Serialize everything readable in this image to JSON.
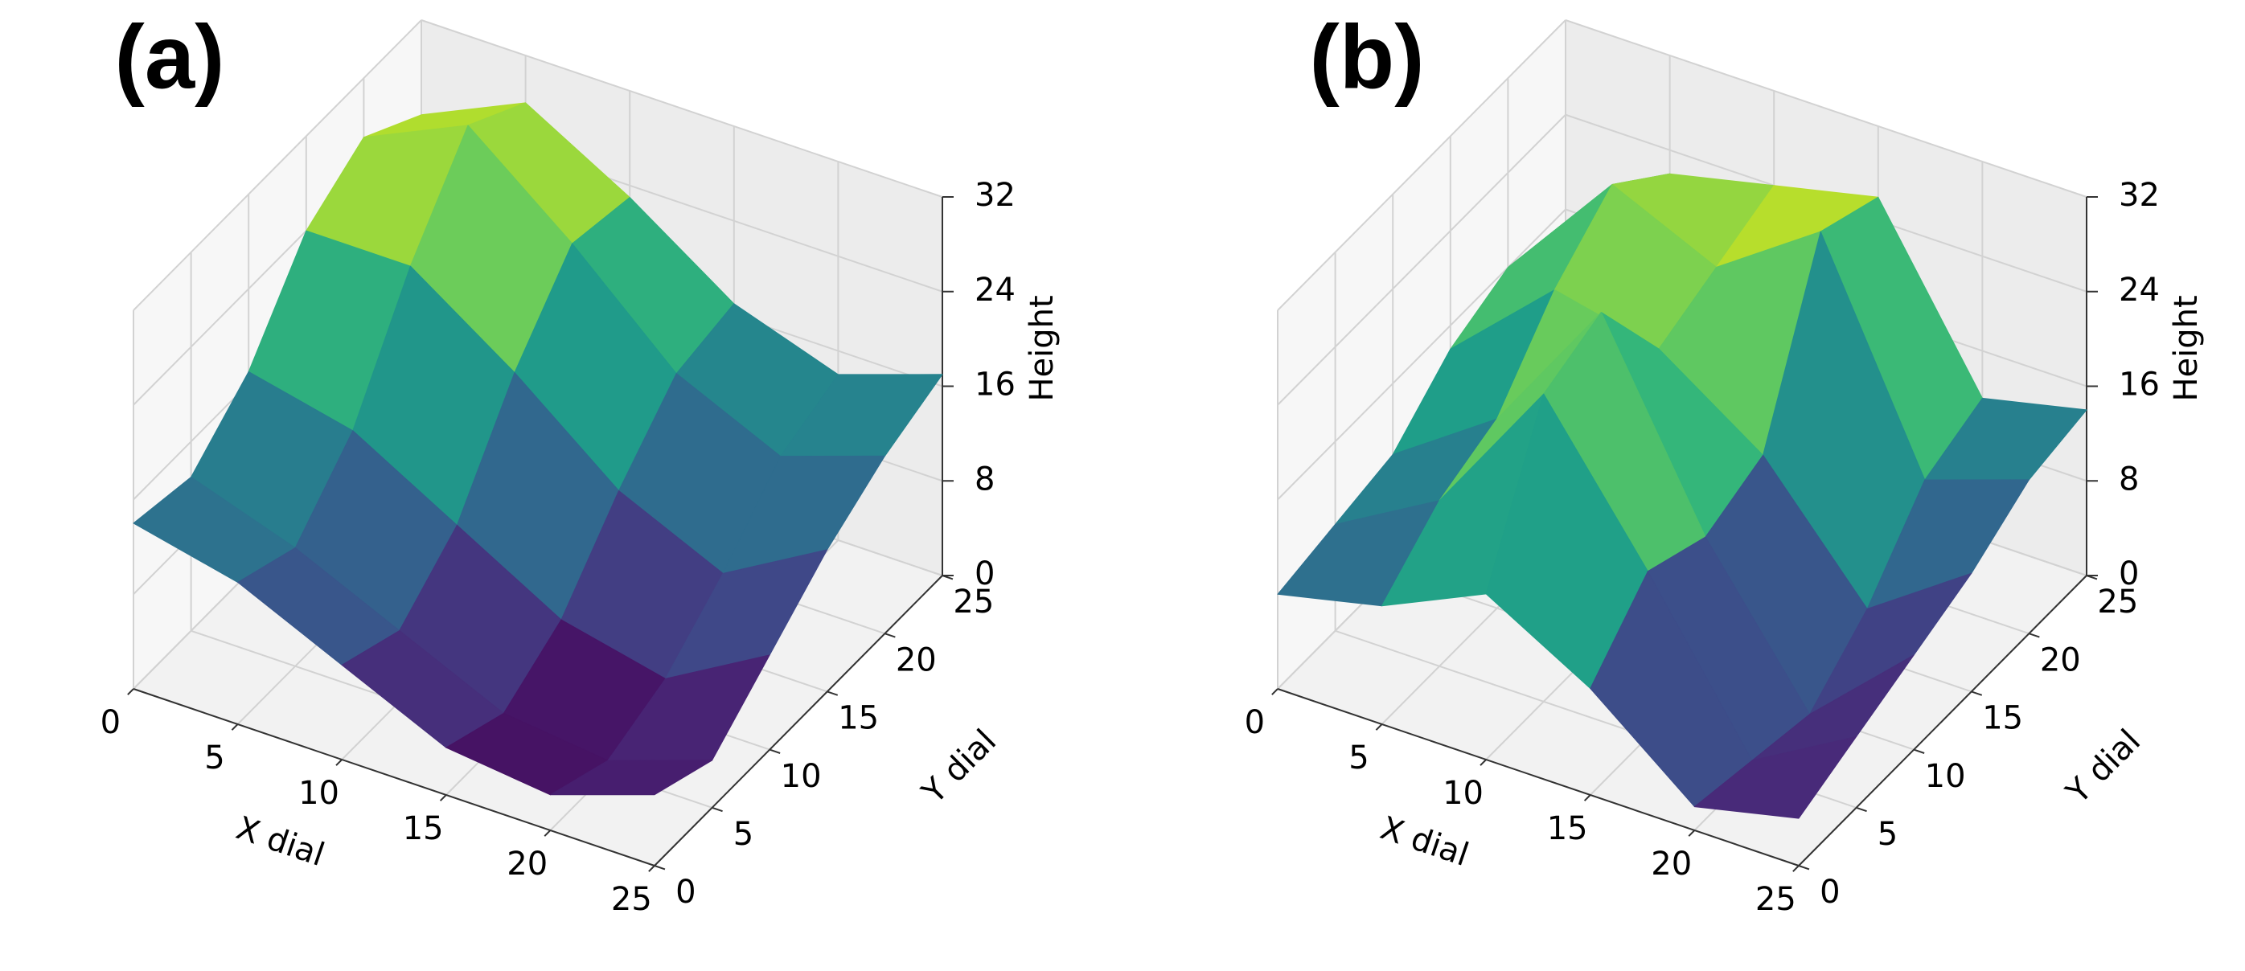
{
  "chart_data": [
    {
      "type": "surface",
      "panel_label": "(a)",
      "xlabel": "X dial",
      "ylabel": "Y dial",
      "zlabel": "Height",
      "colormap": "viridis",
      "grid": true,
      "x": [
        0,
        5,
        10,
        15,
        20,
        25
      ],
      "y": [
        0,
        5,
        10,
        15,
        20,
        25
      ],
      "z": [
        [
          14,
          12,
          8,
          4,
          3,
          6
        ],
        [
          13,
          10,
          6,
          2,
          1,
          4
        ],
        [
          17,
          15,
          10,
          5,
          3,
          8
        ],
        [
          24,
          24,
          18,
          11,
          7,
          12
        ],
        [
          27,
          31,
          24,
          16,
          12,
          15
        ],
        [
          24,
          28,
          23,
          17,
          14,
          17
        ]
      ],
      "xlim": [
        0,
        25
      ],
      "ylim": [
        0,
        25
      ],
      "zlim": [
        0,
        32
      ],
      "xticks": [
        0,
        5,
        10,
        15,
        20,
        25
      ],
      "yticks": [
        0,
        5,
        10,
        15,
        20,
        25
      ],
      "zticks": [
        0,
        8,
        16,
        24,
        32
      ]
    },
    {
      "type": "surface",
      "panel_label": "(b)",
      "xlabel": "X dial",
      "ylabel": "Y dial",
      "zlabel": "Height",
      "colormap": "viridis",
      "grid": true,
      "x": [
        0,
        5,
        10,
        15,
        20,
        25
      ],
      "y": [
        0,
        5,
        10,
        15,
        20,
        25
      ],
      "z": [
        [
          8,
          10,
          14,
          9,
          2,
          4
        ],
        [
          9,
          14,
          26,
          14,
          1,
          6
        ],
        [
          10,
          16,
          28,
          12,
          0,
          8
        ],
        [
          14,
          22,
          20,
          14,
          4,
          10
        ],
        [
          16,
          26,
          22,
          28,
          10,
          13
        ],
        [
          14,
          22,
          24,
          26,
          12,
          14
        ]
      ],
      "xlim": [
        0,
        25
      ],
      "ylim": [
        0,
        25
      ],
      "zlim": [
        0,
        32
      ],
      "xticks": [
        0,
        5,
        10,
        15,
        20,
        25
      ],
      "yticks": [
        0,
        5,
        10,
        15,
        20,
        25
      ],
      "zticks": [
        0,
        8,
        16,
        24,
        32
      ]
    }
  ]
}
